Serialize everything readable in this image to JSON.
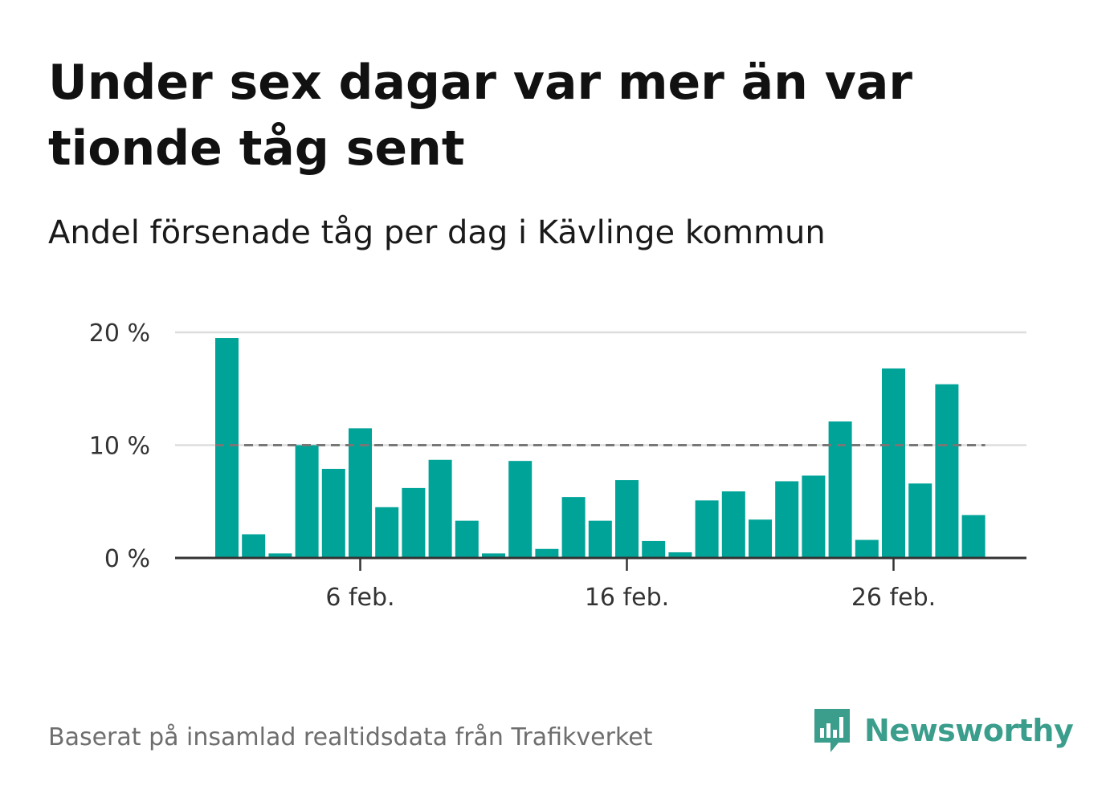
{
  "title": "Under sex dagar var mer än var tionde tåg sent",
  "subtitle": "Andel försenade tåg per dag i Kävlinge kommun",
  "source": "Baserat på insamlad realtidsdata från Trafikverket",
  "brand": {
    "name": "Newsworthy",
    "icon": "newsworthy-logo-icon",
    "color": "#3b9e8c"
  },
  "colors": {
    "bar": "#00a398",
    "reference_line": "#777777",
    "grid": "#dddddd",
    "axis": "#333333"
  },
  "chart_data": {
    "type": "bar",
    "title": "Under sex dagar var mer än var tionde tåg sent",
    "subtitle": "Andel försenade tåg per dag i Kävlinge kommun",
    "x_unit": "day of February",
    "x": [
      1,
      2,
      3,
      4,
      5,
      6,
      7,
      8,
      9,
      10,
      11,
      12,
      13,
      14,
      15,
      16,
      17,
      18,
      19,
      20,
      21,
      22,
      23,
      24,
      25,
      26,
      27,
      28,
      29
    ],
    "values": [
      19.5,
      2.1,
      0.4,
      10.0,
      7.9,
      11.5,
      4.5,
      6.2,
      8.7,
      3.3,
      0.4,
      8.6,
      0.8,
      5.4,
      3.3,
      6.9,
      1.5,
      0.5,
      5.1,
      5.9,
      3.4,
      6.8,
      7.3,
      12.1,
      1.6,
      16.8,
      6.6,
      15.4,
      3.8
    ],
    "ylim": [
      0,
      20
    ],
    "y_ticks": [
      {
        "value": 0,
        "label": "0 %"
      },
      {
        "value": 10,
        "label": "10 %"
      },
      {
        "value": 20,
        "label": "20 %"
      }
    ],
    "x_ticks": [
      {
        "value": 6,
        "label": "6 feb."
      },
      {
        "value": 16,
        "label": "16 feb."
      },
      {
        "value": 26,
        "label": "26 feb."
      }
    ],
    "reference_line": {
      "value": 10,
      "style": "dashed"
    },
    "grid": true,
    "legend": false
  }
}
